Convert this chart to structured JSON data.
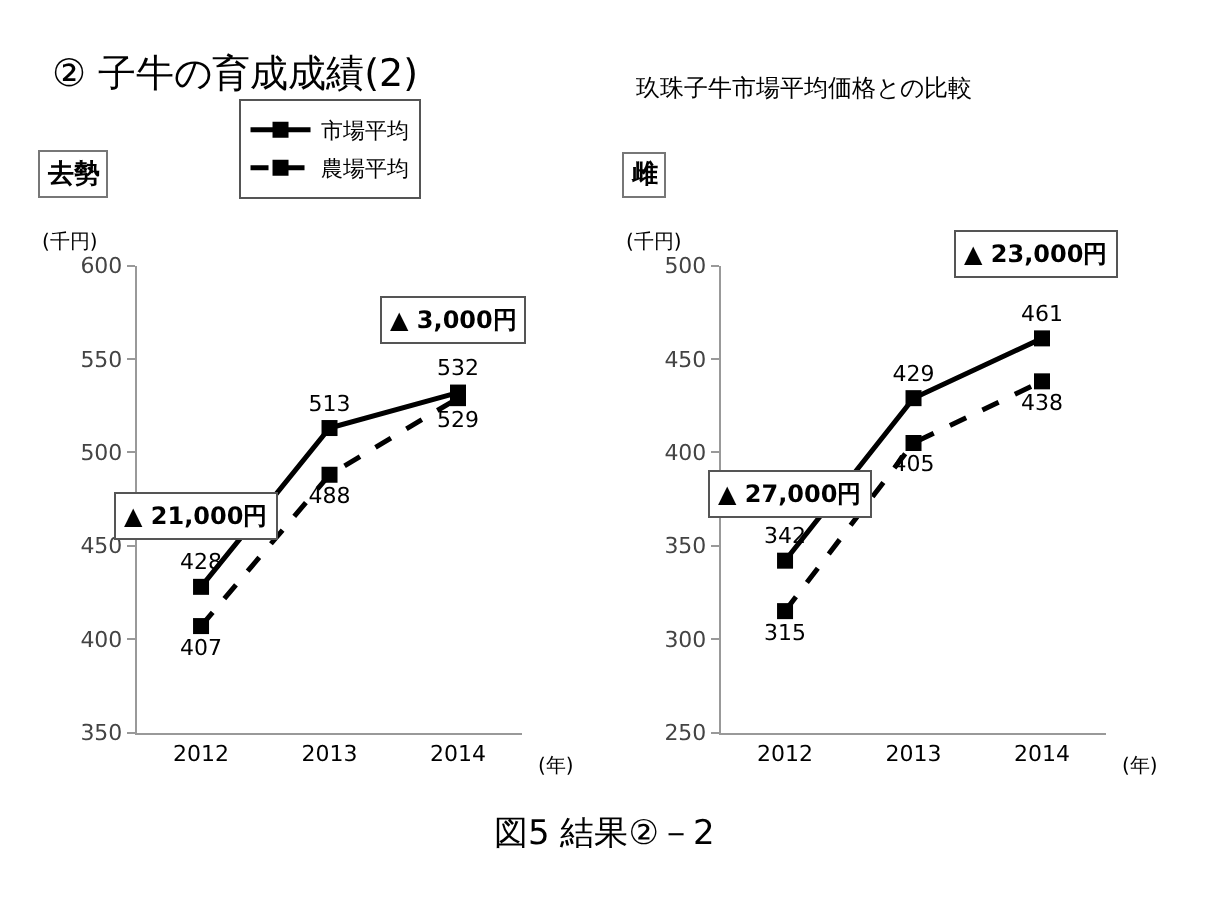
{
  "chart_data": [
    {
      "type": "line",
      "title": "去勢",
      "ylabel": "(千円)",
      "xlabel": "(年)",
      "categories": [
        "2012",
        "2013",
        "2014"
      ],
      "series": [
        {
          "name": "市場平均",
          "color": "#000000",
          "values": [
            428,
            513,
            532
          ],
          "line_style": "solid"
        },
        {
          "name": "農場平均",
          "color": "#000000",
          "values": [
            407,
            488,
            529
          ],
          "line_style": "dashed"
        }
      ],
      "ylim": [
        350,
        600
      ],
      "yticks": [
        350,
        400,
        450,
        500,
        550,
        600
      ],
      "legend": "top",
      "marker": "square",
      "data_labels": true,
      "annotations": [
        "② 子牛の育成成績(2)",
        "玖珠子牛市場平均価格との比較",
        "図5 結果②－2",
        "▲ 21,000円",
        "▲ 3,000円"
      ]
    },
    {
      "type": "line",
      "title": "雌",
      "ylabel": "(千円)",
      "xlabel": "(年)",
      "categories": [
        "2012",
        "2013",
        "2014"
      ],
      "series": [
        {
          "color": "#000000",
          "values": [
            342,
            429,
            461
          ],
          "line_style": "solid"
        },
        {
          "color": "#000000",
          "values": [
            315,
            405,
            438
          ],
          "line_style": "dashed"
        }
      ],
      "ylim": [
        250,
        500
      ],
      "yticks": [
        250,
        300,
        350,
        400,
        450,
        500
      ],
      "legend": false,
      "marker": "square",
      "data_labels": true,
      "annotations": [
        "▲ 27,000円",
        "▲ 23,000円"
      ]
    }
  ]
}
